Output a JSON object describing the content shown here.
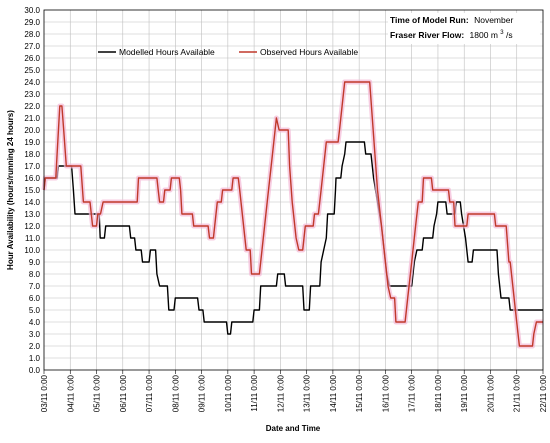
{
  "chart_data": {
    "type": "line",
    "xlabel": "Date and Time",
    "ylabel": "Hour Availability (hours/running 24 hours)",
    "x_unit": "day of November (fractional)",
    "xlim": [
      3,
      22
    ],
    "ylim": [
      0,
      30
    ],
    "y_step": 1,
    "grid": true,
    "x_ticks": [
      {
        "x": 3,
        "label": "03/11 0:00"
      },
      {
        "x": 4,
        "label": "04/11 0:00"
      },
      {
        "x": 5,
        "label": "05/11 0:00"
      },
      {
        "x": 6,
        "label": "06/11 0:00"
      },
      {
        "x": 7,
        "label": "07/11 0:00"
      },
      {
        "x": 8,
        "label": "08/11 0:00"
      },
      {
        "x": 9,
        "label": "09/11 0:00"
      },
      {
        "x": 10,
        "label": "10/11 0:00"
      },
      {
        "x": 11,
        "label": "11/11 0:00"
      },
      {
        "x": 12,
        "label": "12/11 0:00"
      },
      {
        "x": 13,
        "label": "13/11 0:00"
      },
      {
        "x": 14,
        "label": "14/11 0:00"
      },
      {
        "x": 15,
        "label": "15/11 0:00"
      },
      {
        "x": 16,
        "label": "16/11 0:00"
      },
      {
        "x": 17,
        "label": "17/11 0:00"
      },
      {
        "x": 18,
        "label": "18/11 0:00"
      },
      {
        "x": 19,
        "label": "19/11 0:00"
      },
      {
        "x": 20,
        "label": "20/11 0:00"
      },
      {
        "x": 21,
        "label": "21/11 0:00"
      },
      {
        "x": 22,
        "label": "22/11 0:00"
      }
    ],
    "legend_position": "top-center",
    "annotations": {
      "run_label": "Time of Model Run:",
      "run_value": "November",
      "flow_label": "Fraser River Flow:",
      "flow_value": "1800 m",
      "flow_sup": "3",
      "flow_unit": "/s"
    },
    "series": [
      {
        "name": "Modelled Hours Available",
        "color": "#000000",
        "points": [
          [
            3.0,
            15
          ],
          [
            3.05,
            16
          ],
          [
            3.5,
            16
          ],
          [
            3.55,
            17
          ],
          [
            4.05,
            17
          ],
          [
            4.12,
            15
          ],
          [
            4.18,
            13
          ],
          [
            5.1,
            13
          ],
          [
            5.14,
            11
          ],
          [
            5.3,
            11
          ],
          [
            5.35,
            12
          ],
          [
            6.25,
            12
          ],
          [
            6.3,
            11
          ],
          [
            6.45,
            11
          ],
          [
            6.5,
            10
          ],
          [
            6.7,
            10
          ],
          [
            6.75,
            9
          ],
          [
            7.0,
            9
          ],
          [
            7.05,
            10
          ],
          [
            7.25,
            10
          ],
          [
            7.3,
            8
          ],
          [
            7.4,
            7
          ],
          [
            7.7,
            7
          ],
          [
            7.75,
            5
          ],
          [
            7.95,
            5
          ],
          [
            8.0,
            6
          ],
          [
            8.85,
            6
          ],
          [
            8.9,
            5
          ],
          [
            9.05,
            5
          ],
          [
            9.1,
            4
          ],
          [
            9.95,
            4
          ],
          [
            10.0,
            3
          ],
          [
            10.1,
            3
          ],
          [
            10.15,
            4
          ],
          [
            10.95,
            4
          ],
          [
            11.0,
            5
          ],
          [
            11.2,
            5
          ],
          [
            11.25,
            7
          ],
          [
            11.85,
            7
          ],
          [
            11.9,
            8
          ],
          [
            12.15,
            8
          ],
          [
            12.2,
            7
          ],
          [
            12.85,
            7
          ],
          [
            12.9,
            5
          ],
          [
            13.1,
            5
          ],
          [
            13.15,
            7
          ],
          [
            13.5,
            7
          ],
          [
            13.55,
            9
          ],
          [
            13.75,
            11
          ],
          [
            13.8,
            13
          ],
          [
            14.05,
            13
          ],
          [
            14.1,
            15
          ],
          [
            14.12,
            16
          ],
          [
            14.3,
            16
          ],
          [
            14.35,
            17
          ],
          [
            14.45,
            18
          ],
          [
            14.5,
            19
          ],
          [
            15.2,
            19
          ],
          [
            15.25,
            18
          ],
          [
            15.45,
            18
          ],
          [
            15.55,
            16
          ],
          [
            15.7,
            14
          ],
          [
            15.85,
            12
          ],
          [
            15.95,
            10
          ],
          [
            16.05,
            8
          ],
          [
            16.15,
            7
          ],
          [
            17.0,
            7
          ],
          [
            17.1,
            9
          ],
          [
            17.2,
            10
          ],
          [
            17.4,
            10
          ],
          [
            17.45,
            11
          ],
          [
            17.8,
            11
          ],
          [
            17.85,
            12
          ],
          [
            17.95,
            13
          ],
          [
            18.0,
            14
          ],
          [
            18.3,
            14
          ],
          [
            18.35,
            13
          ],
          [
            18.65,
            13
          ],
          [
            18.7,
            14
          ],
          [
            18.85,
            14
          ],
          [
            18.9,
            13
          ],
          [
            19.05,
            11
          ],
          [
            19.1,
            10
          ],
          [
            19.15,
            9
          ],
          [
            19.3,
            9
          ],
          [
            19.35,
            10
          ],
          [
            20.25,
            10
          ],
          [
            20.3,
            8
          ],
          [
            20.4,
            6
          ],
          [
            20.7,
            6
          ],
          [
            20.75,
            5
          ],
          [
            21.6,
            5
          ],
          [
            21.65,
            5
          ],
          [
            22.0,
            5
          ]
        ]
      },
      {
        "name": "Observed Hours Available",
        "color": "#c0392b",
        "points": [
          [
            3.0,
            15
          ],
          [
            3.05,
            16
          ],
          [
            3.45,
            16
          ],
          [
            3.5,
            18
          ],
          [
            3.6,
            22
          ],
          [
            3.68,
            22
          ],
          [
            3.75,
            20
          ],
          [
            3.85,
            17
          ],
          [
            4.4,
            17
          ],
          [
            4.5,
            14
          ],
          [
            4.75,
            14
          ],
          [
            4.85,
            12
          ],
          [
            5.0,
            12
          ],
          [
            5.05,
            13
          ],
          [
            5.15,
            13
          ],
          [
            5.25,
            14
          ],
          [
            6.55,
            14
          ],
          [
            6.6,
            16
          ],
          [
            7.3,
            16
          ],
          [
            7.35,
            15
          ],
          [
            7.4,
            14
          ],
          [
            7.55,
            14
          ],
          [
            7.6,
            15
          ],
          [
            7.8,
            15
          ],
          [
            7.85,
            16
          ],
          [
            8.15,
            16
          ],
          [
            8.2,
            15
          ],
          [
            8.25,
            13
          ],
          [
            8.65,
            13
          ],
          [
            8.7,
            12
          ],
          [
            9.25,
            12
          ],
          [
            9.3,
            11
          ],
          [
            9.45,
            11
          ],
          [
            9.5,
            12
          ],
          [
            9.6,
            14
          ],
          [
            9.75,
            14
          ],
          [
            9.8,
            15
          ],
          [
            10.15,
            15
          ],
          [
            10.2,
            16
          ],
          [
            10.4,
            16
          ],
          [
            10.45,
            15
          ],
          [
            10.55,
            13
          ],
          [
            10.65,
            11
          ],
          [
            10.7,
            10
          ],
          [
            10.85,
            10
          ],
          [
            10.9,
            8
          ],
          [
            11.2,
            8
          ],
          [
            11.3,
            10
          ],
          [
            11.5,
            14
          ],
          [
            11.7,
            18
          ],
          [
            11.85,
            21
          ],
          [
            11.95,
            20
          ],
          [
            12.3,
            20
          ],
          [
            12.35,
            17
          ],
          [
            12.45,
            14
          ],
          [
            12.6,
            11
          ],
          [
            12.7,
            10
          ],
          [
            12.85,
            10
          ],
          [
            12.9,
            11
          ],
          [
            12.95,
            12
          ],
          [
            13.25,
            12
          ],
          [
            13.3,
            13
          ],
          [
            13.45,
            13
          ],
          [
            13.55,
            15
          ],
          [
            13.65,
            17
          ],
          [
            13.75,
            19
          ],
          [
            14.2,
            19
          ],
          [
            14.25,
            20
          ],
          [
            14.35,
            22
          ],
          [
            14.45,
            24
          ],
          [
            15.4,
            24
          ],
          [
            15.5,
            21
          ],
          [
            15.6,
            18
          ],
          [
            15.7,
            15
          ],
          [
            15.85,
            12
          ],
          [
            16.0,
            9
          ],
          [
            16.1,
            7
          ],
          [
            16.2,
            6
          ],
          [
            16.35,
            6
          ],
          [
            16.4,
            4
          ],
          [
            16.75,
            4
          ],
          [
            16.85,
            6
          ],
          [
            16.95,
            8
          ],
          [
            17.05,
            10
          ],
          [
            17.15,
            12
          ],
          [
            17.25,
            14
          ],
          [
            17.4,
            14
          ],
          [
            17.45,
            16
          ],
          [
            17.75,
            16
          ],
          [
            17.8,
            15
          ],
          [
            18.4,
            15
          ],
          [
            18.45,
            14
          ],
          [
            18.6,
            14
          ],
          [
            18.65,
            12
          ],
          [
            19.1,
            12
          ],
          [
            19.15,
            13
          ],
          [
            20.15,
            13
          ],
          [
            20.2,
            12
          ],
          [
            20.6,
            12
          ],
          [
            20.7,
            9
          ],
          [
            20.75,
            9
          ],
          [
            20.85,
            7
          ],
          [
            21.0,
            4
          ],
          [
            21.1,
            2
          ],
          [
            21.6,
            2
          ],
          [
            21.65,
            3
          ],
          [
            21.75,
            4
          ],
          [
            21.85,
            4
          ],
          [
            22.0,
            4
          ]
        ]
      }
    ]
  }
}
